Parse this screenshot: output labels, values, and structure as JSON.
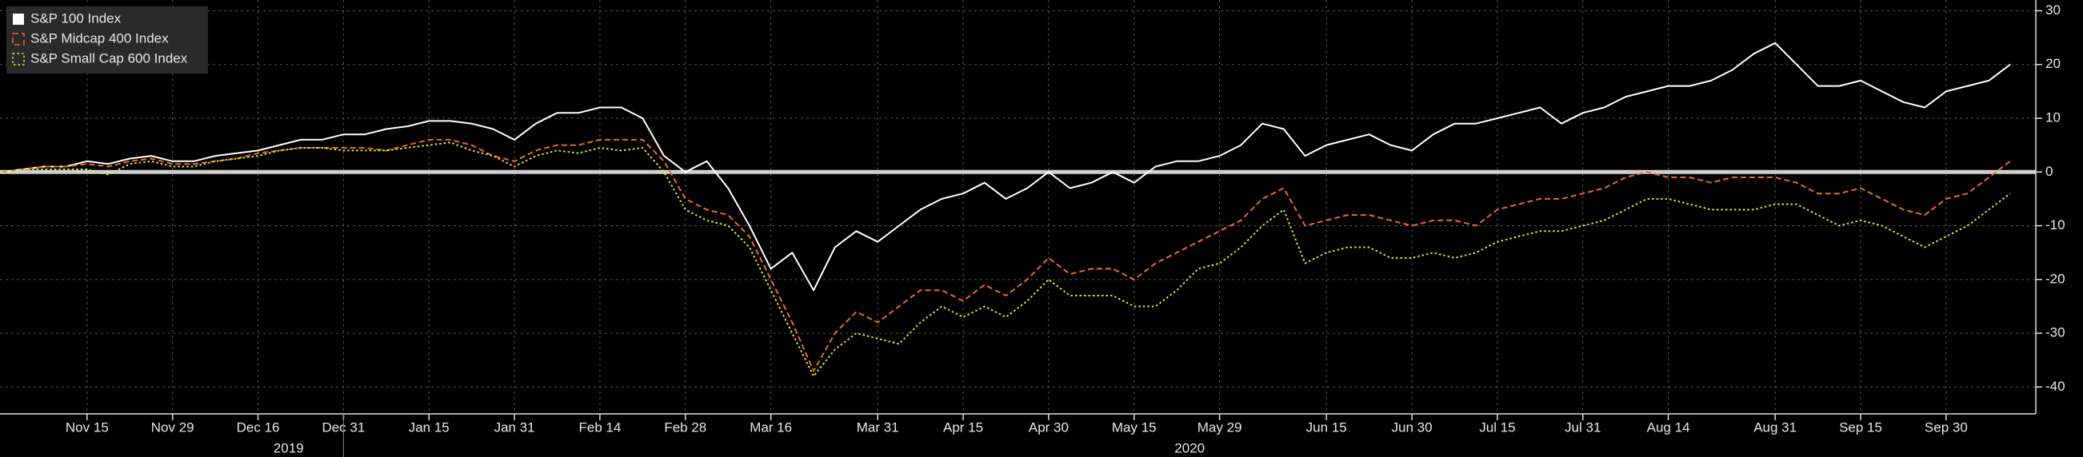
{
  "chart_data": {
    "type": "line",
    "categories": [
      null,
      null,
      null,
      null,
      "Nov 15",
      null,
      null,
      null,
      "Nov 29",
      null,
      null,
      null,
      "Dec 16",
      null,
      null,
      null,
      "Dec 31",
      null,
      null,
      null,
      "Jan 15",
      null,
      null,
      null,
      "Jan 31",
      null,
      null,
      null,
      "Feb 14",
      null,
      null,
      null,
      "Feb 28",
      null,
      null,
      null,
      "Mar 16",
      null,
      null,
      null,
      null,
      "Mar 31",
      null,
      null,
      null,
      "Apr 15",
      null,
      null,
      null,
      "Apr 30",
      null,
      null,
      null,
      "May 15",
      null,
      null,
      null,
      "May 29",
      null,
      null,
      null,
      null,
      "Jun 15",
      null,
      null,
      null,
      "Jun 30",
      null,
      null,
      null,
      "Jul 15",
      null,
      null,
      null,
      "Jul 31",
      null,
      null,
      null,
      "Aug 14",
      null,
      null,
      null,
      null,
      "Aug 31",
      null,
      null,
      null,
      "Sep 15",
      null,
      null,
      null,
      "Sep 30",
      null,
      null,
      null
    ],
    "year_labels": [
      "2019",
      "2020"
    ],
    "series": [
      {
        "name": "S&P 100 Index",
        "color": "#ffffff",
        "style": "solid",
        "values": [
          0,
          0.5,
          1,
          1,
          2,
          1.5,
          2.5,
          3,
          2,
          2,
          3,
          3.5,
          4,
          5,
          6,
          6,
          7,
          7,
          8,
          8.5,
          9.5,
          9.5,
          9,
          8,
          6,
          9,
          11,
          11,
          12,
          12,
          10,
          3,
          0,
          2,
          -3,
          -10,
          -18,
          -15,
          -22,
          -14,
          -11,
          -13,
          -10,
          -7,
          -5,
          -4,
          -2,
          -5,
          -3,
          0,
          -3,
          -2,
          0,
          -2,
          1,
          2,
          2,
          3,
          5,
          9,
          8,
          3,
          5,
          6,
          7,
          5,
          4,
          7,
          9,
          9,
          10,
          11,
          12,
          9,
          11,
          12,
          14,
          15,
          16,
          16,
          17,
          19,
          22,
          24,
          20,
          16,
          16,
          17,
          15,
          13,
          12,
          15,
          16,
          17,
          20
        ]
      },
      {
        "name": "S&P Midcap 400 Index",
        "color": "#e8692c",
        "style": "dashed",
        "values": [
          0,
          0.5,
          1,
          1,
          1.5,
          1,
          2,
          2.5,
          1.5,
          1.5,
          2,
          2.5,
          3.5,
          4,
          4.5,
          4.5,
          4.5,
          4.5,
          4,
          5,
          6,
          6,
          5,
          3,
          2,
          4,
          5,
          5,
          6,
          6,
          6,
          2,
          -5,
          -7,
          -8,
          -12,
          -20,
          -28,
          -37,
          -30,
          -26,
          -28,
          -25,
          -22,
          -22,
          -24,
          -21,
          -23,
          -20,
          -16,
          -19,
          -18,
          -18,
          -20,
          -17,
          -15,
          -13,
          -11,
          -9,
          -5,
          -3,
          -10,
          -9,
          -8,
          -8,
          -9,
          -10,
          -9,
          -9,
          -10,
          -7,
          -6,
          -5,
          -5,
          -4,
          -3,
          -1,
          0,
          -1,
          -1,
          -2,
          -1,
          -1,
          -1,
          -2,
          -4,
          -4,
          -3,
          -5,
          -7,
          -8,
          -5,
          -4,
          -1,
          2
        ]
      },
      {
        "name": "S&P Small Cap 600 Index",
        "color": "#d8e628",
        "style": "dotted",
        "values": [
          0,
          0.5,
          0.5,
          0.5,
          0.5,
          -0.5,
          1.5,
          2,
          1,
          1,
          2,
          2.5,
          3,
          4,
          4.5,
          4.5,
          4,
          4,
          4,
          4.5,
          5,
          5.5,
          4,
          3,
          1,
          3,
          4,
          3.5,
          4.5,
          4,
          4.5,
          0,
          -7,
          -9,
          -10,
          -14,
          -22,
          -30,
          -38,
          -33,
          -30,
          -31,
          -32,
          -28,
          -25,
          -27,
          -25,
          -27,
          -24,
          -20,
          -23,
          -23,
          -23,
          -25,
          -25,
          -22,
          -18,
          -17,
          -14,
          -10,
          -7,
          -17,
          -15,
          -14,
          -14,
          -16,
          -16,
          -15,
          -16,
          -15,
          -13,
          -12,
          -11,
          -11,
          -10,
          -9,
          -7,
          -5,
          -5,
          -6,
          -7,
          -7,
          -7,
          -6,
          -6,
          -8,
          -10,
          -9,
          -10,
          -12,
          -14,
          -12,
          -10,
          -7,
          -4
        ]
      }
    ],
    "ylim": [
      -45,
      32
    ],
    "yticks": [
      -40,
      -30,
      -20,
      -10,
      0,
      10,
      20,
      30
    ],
    "hline": 0,
    "grid": true,
    "legend": "top-left"
  }
}
